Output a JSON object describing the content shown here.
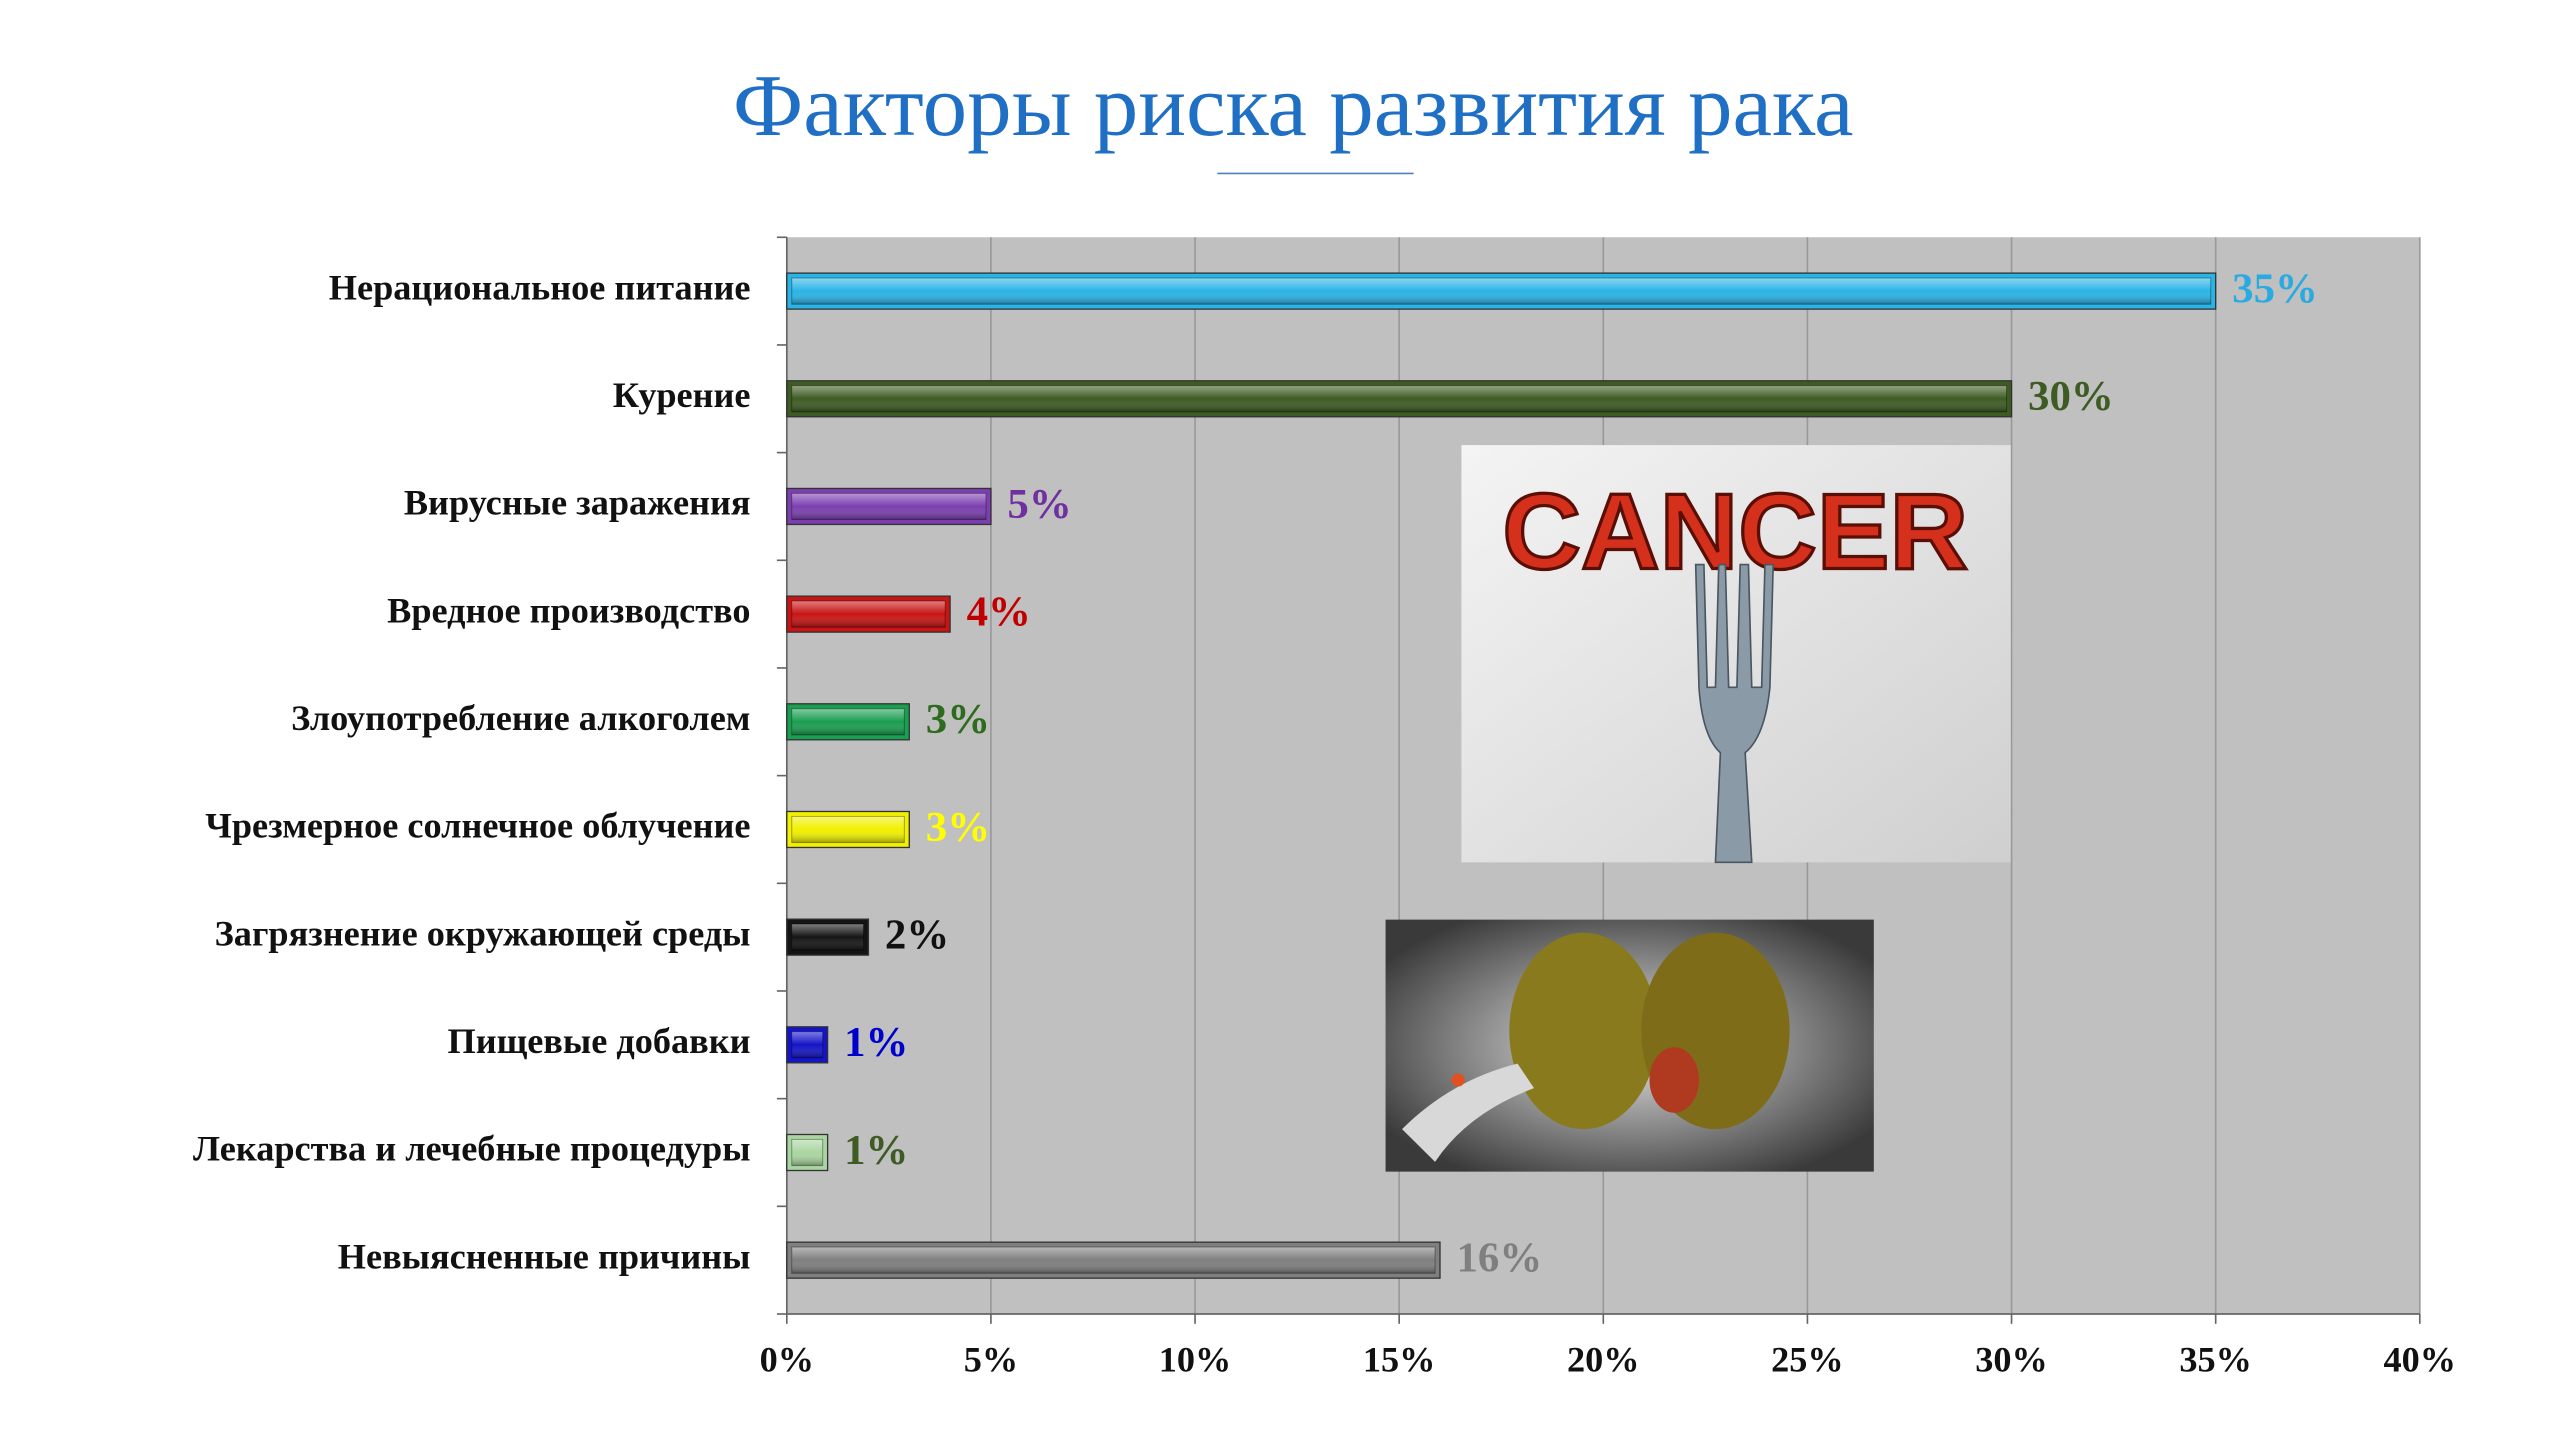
{
  "chart_data": {
    "type": "bar",
    "orientation": "horizontal",
    "title": "Факторы риска развития рака",
    "categories": [
      "Нерациональное питание",
      "Курение",
      "Вирусные заражения",
      "Вредное производство",
      "Злоупотребление алкоголем",
      "Чрезмерное солнечное облучение",
      "Загрязнение окружающей среды",
      "Пищевые добавки",
      "Лекарства и лечебные процедуры",
      "Невыясненные причины"
    ],
    "values": [
      35,
      30,
      5,
      4,
      3,
      3,
      2,
      1,
      1,
      16
    ],
    "value_labels": [
      "35%",
      "30%",
      "5%",
      "4%",
      "3%",
      "3%",
      "2%",
      "1%",
      "1%",
      "16%"
    ],
    "colors": [
      "#2ab4e6",
      "#3d5b22",
      "#7b3fb0",
      "#c81414",
      "#1a9e50",
      "#f2f000",
      "#141414",
      "#1414c8",
      "#a9d6a0",
      "#7f7f7f"
    ],
    "label_colors": [
      "#29abe2",
      "#3d5b22",
      "#7030a0",
      "#c00000",
      "#2e6b1e",
      "#ffff00",
      "#111111",
      "#0000cc",
      "#3d5b22",
      "#7f7f7f"
    ],
    "xlim": [
      0,
      40
    ],
    "xticks": [
      {
        "value": 0,
        "label": "0%"
      },
      {
        "value": 5,
        "label": "5%"
      },
      {
        "value": 10,
        "label": "10%"
      },
      {
        "value": 15,
        "label": "15%"
      },
      {
        "value": 20,
        "label": "20%"
      },
      {
        "value": 25,
        "label": "25%"
      },
      {
        "value": 30,
        "label": "30%"
      },
      {
        "value": 35,
        "label": "35%"
      },
      {
        "value": 40,
        "label": "40%"
      }
    ],
    "grid": true,
    "background": "#c0c0c0"
  },
  "illustration_text": "CANCER"
}
